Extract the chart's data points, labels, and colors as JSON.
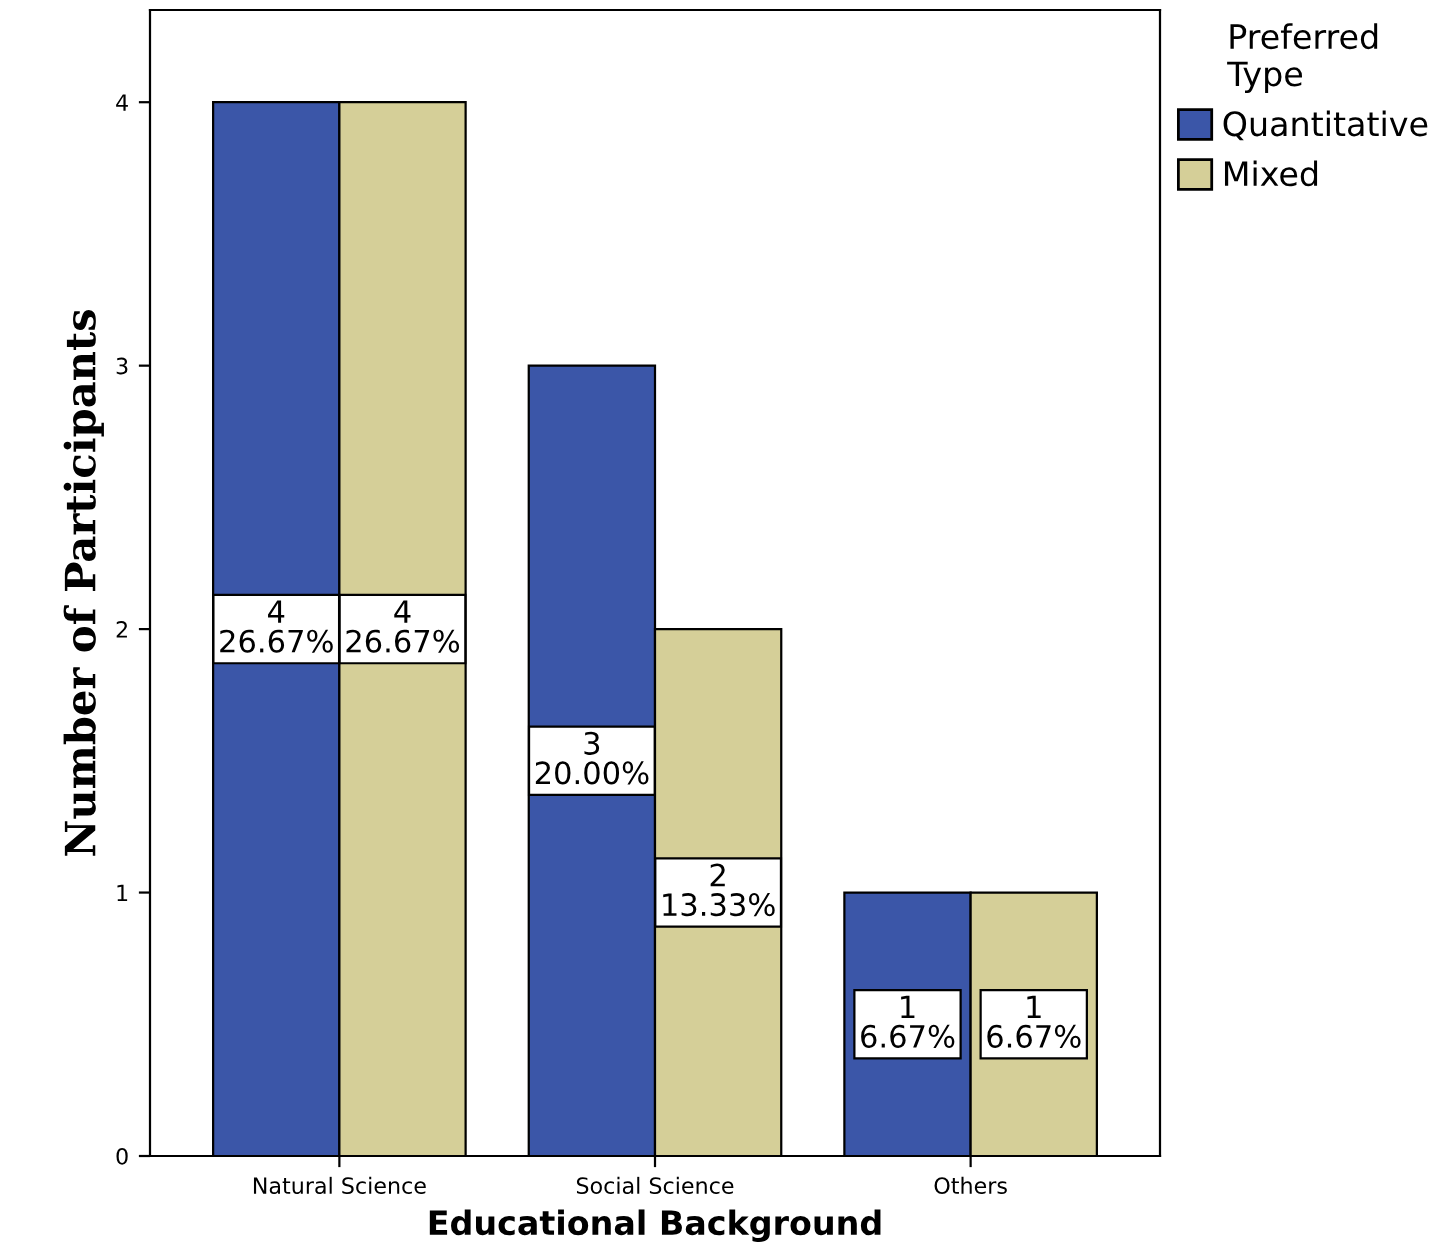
{
  "chart_data": {
    "type": "bar",
    "xlabel": "Educational Background",
    "ylabel": "Number of Participants",
    "legend_title": "Preferred Type",
    "categories": [
      "Natural Science",
      "Social Science",
      "Others"
    ],
    "series": [
      {
        "name": "Quantitative",
        "color": "#3b56a8",
        "values": [
          4,
          3,
          1
        ],
        "value_labels": [
          "4\n26.67%",
          "3\n20.00%",
          "1\n6.67%"
        ]
      },
      {
        "name": "Mixed",
        "color": "#d5cf98",
        "values": [
          4,
          2,
          1
        ],
        "value_labels": [
          "4\n26.67%",
          "2\n13.33%",
          "1\n6.67%"
        ]
      }
    ],
    "ylim": [
      0,
      4.35
    ],
    "yticks": [
      0,
      1,
      2,
      3,
      4
    ],
    "grid": false,
    "legend": "top right"
  }
}
